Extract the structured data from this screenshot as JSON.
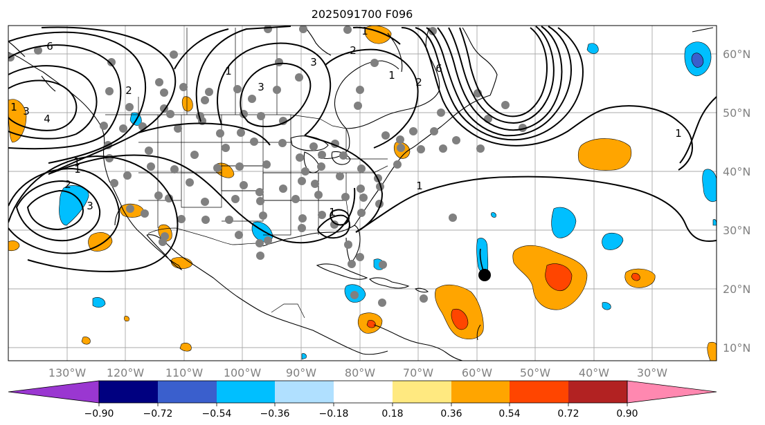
{
  "title": "2025091700 F096",
  "map": {
    "lon_labels": [
      "130°W",
      "120°W",
      "110°W",
      "100°W",
      "90°W",
      "80°W",
      "70°W",
      "60°W",
      "50°W",
      "40°W",
      "30°W"
    ],
    "lat_labels": [
      "60°N",
      "50°N",
      "40°N",
      "30°N",
      "20°N",
      "10°N"
    ],
    "contour_labels": [
      "6",
      "4",
      "3",
      "2",
      "1",
      "3",
      "1",
      "2",
      "3",
      "1",
      "2",
      "1",
      "6",
      "1",
      "1",
      "3",
      "2",
      "1",
      "1",
      "1"
    ]
  },
  "colorbar": {
    "colors": [
      "#9a37d1",
      "#000080",
      "#3a5fcd",
      "#00bfff",
      "#b0e0ff",
      "#ffffff",
      "#ffe980",
      "#ffa500",
      "#ff4500",
      "#b22222",
      "#ff88b0"
    ],
    "tick_labels": [
      "−0.90",
      "−0.72",
      "−0.54",
      "−0.36",
      "−0.18",
      "0.18",
      "0.36",
      "0.54",
      "0.72",
      "0.90"
    ]
  }
}
